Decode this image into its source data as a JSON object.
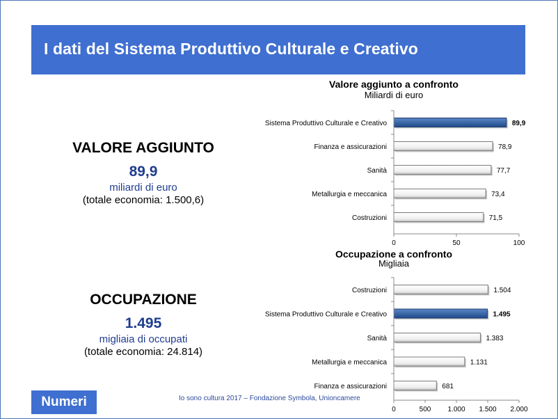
{
  "slide": {
    "title": "I dati del Sistema Produttivo Culturale e Creativo",
    "badge": "Numeri",
    "source": "Io sono cultura 2017 – Fondazione Symbola, Unioncamere"
  },
  "kpis": [
    {
      "heading": "VALORE AGGIUNTO",
      "value": "89,9",
      "unit": "miliardi di euro",
      "total": "(totale economia: 1.500,6)"
    },
    {
      "heading": "OCCUPAZIONE",
      "value": "1.495",
      "unit": "migliaia di occupati",
      "total": "(totale economia: 24.814)"
    }
  ],
  "colors": {
    "banner": "#3f6fd0",
    "highlight_bar": "#2e5a9c",
    "bar": "#ffffff",
    "kpi_value": "#1f3d8f"
  },
  "chart_data": [
    {
      "type": "bar",
      "orientation": "horizontal",
      "title": "Valore aggiunto a confronto",
      "subtitle": "Miliardi di euro",
      "categories": [
        "Sistema Produttivo Culturale e Creativo",
        "Finanza e assicurazioni",
        "Sanità",
        "Metallurgia e meccanica",
        "Costruzioni"
      ],
      "values": [
        89.9,
        78.9,
        77.7,
        73.4,
        71.5
      ],
      "value_labels": [
        "89,9",
        "78,9",
        "77,7",
        "73,4",
        "71,5"
      ],
      "highlight": [
        true,
        false,
        false,
        false,
        false
      ],
      "xlim": [
        0,
        100
      ],
      "ticks": [
        0,
        50,
        100
      ],
      "tick_labels": [
        "0",
        "50",
        "100"
      ],
      "grid": false
    },
    {
      "type": "bar",
      "orientation": "horizontal",
      "title": "Occupazione a confronto",
      "subtitle": "Migliaia",
      "categories": [
        "Costruzioni",
        "Sistema Produttivo Culturale e Creativo",
        "Sanità",
        "Metallurgia e meccanica",
        "Finanza e assicurazioni"
      ],
      "values": [
        1504,
        1495,
        1383,
        1131,
        681
      ],
      "value_labels": [
        "1.504",
        "1.495",
        "1.383",
        "1.131",
        "681"
      ],
      "highlight": [
        false,
        true,
        false,
        false,
        false
      ],
      "xlim": [
        0,
        2000
      ],
      "ticks": [
        0,
        500,
        1000,
        1500,
        2000
      ],
      "tick_labels": [
        "0",
        "500",
        "1.000",
        "1.500",
        "2.000"
      ],
      "grid": false
    }
  ]
}
